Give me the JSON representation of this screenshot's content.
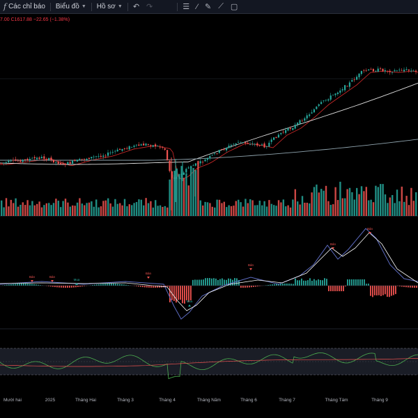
{
  "toolbar": {
    "indicators_label": "Các chỉ báo",
    "chart_label": "Biểu đồ",
    "profile_label": "Hồ sơ"
  },
  "legend": {
    "prefix": "7.00",
    "close": "C1617.88",
    "change": "−22.65 (−1.38%)"
  },
  "x_axis": {
    "labels": [
      "Mười hai",
      "2025",
      "Tháng Hai",
      "Tháng 3",
      "Tháng 4",
      "Tháng Năm",
      "Tháng 6",
      "Tháng 7",
      "Tháng Tám",
      "Tháng 9"
    ]
  },
  "signals": {
    "sell": "Bán",
    "buy": "Mua"
  },
  "colors": {
    "up": "#26a69a",
    "down": "#ef5350",
    "ma_red": "#c62828",
    "ma_white": "#e0e0e0",
    "ma_blue": "#90a4ae",
    "macd": "#5c6bc0",
    "signal": "#ffffff",
    "rsi": "#4caf50"
  }
}
